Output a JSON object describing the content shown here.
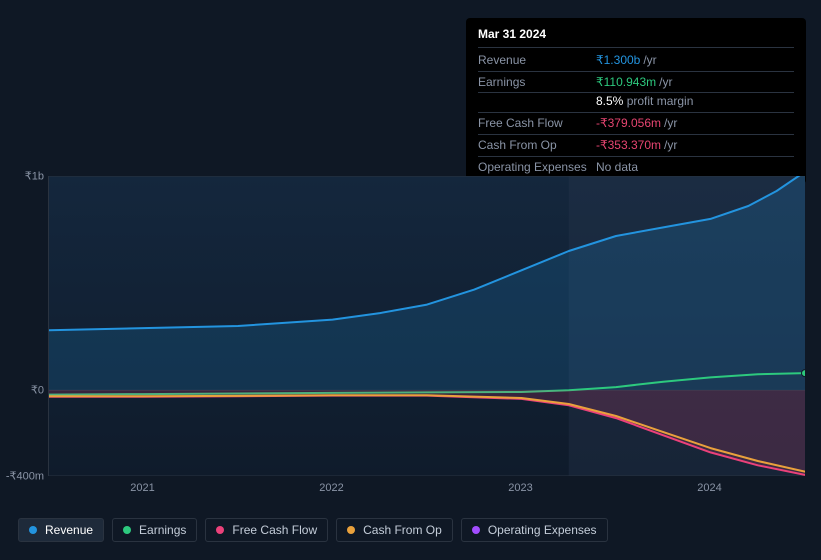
{
  "tooltip": {
    "date": "Mar 31 2024",
    "rows": [
      {
        "label": "Revenue",
        "amount": "₹1.300b",
        "unit": "/yr",
        "color": "#2394df"
      },
      {
        "label": "Earnings",
        "amount": "₹110.943m",
        "unit": "/yr",
        "color": "#2dc97e",
        "sub_pct": "8.5%",
        "sub_text": "profit margin"
      },
      {
        "label": "Free Cash Flow",
        "amount": "-₹379.056m",
        "unit": "/yr",
        "color": "#e64571"
      },
      {
        "label": "Cash From Op",
        "amount": "-₹353.370m",
        "unit": "/yr",
        "color": "#e64571"
      },
      {
        "label": "Operating Expenses",
        "amount": "No data",
        "unit": "",
        "color": "#8a94a6"
      }
    ]
  },
  "chart": {
    "type": "line",
    "background_color": "#0f1825",
    "grid_color": "#2a3340",
    "axis_font_size": 11,
    "axis_color": "#8a94a6",
    "x_domain": [
      2020.5,
      2024.5
    ],
    "y_domain": [
      -400,
      1000
    ],
    "y_ticks": [
      {
        "v": 1000,
        "label": "₹1b"
      },
      {
        "v": 0,
        "label": "₹0"
      },
      {
        "v": -400,
        "label": "-₹400m"
      }
    ],
    "x_ticks": [
      {
        "v": 2021,
        "label": "2021"
      },
      {
        "v": 2022,
        "label": "2022"
      },
      {
        "v": 2023,
        "label": "2023"
      },
      {
        "v": 2024,
        "label": "2024"
      }
    ],
    "future_shade_from_x": 2023.25,
    "future_shade_color": "rgba(40,55,78,0.35)",
    "series": [
      {
        "name": "Revenue",
        "color": "#2394df",
        "width": 2,
        "fill_opacity": 0.18,
        "fill_to": 0,
        "end_marker": true,
        "end_marker_color": "#58c7ff",
        "points": [
          [
            2020.5,
            280
          ],
          [
            2021,
            290
          ],
          [
            2021.5,
            300
          ],
          [
            2022,
            330
          ],
          [
            2022.25,
            360
          ],
          [
            2022.5,
            400
          ],
          [
            2022.75,
            470
          ],
          [
            2023,
            560
          ],
          [
            2023.25,
            650
          ],
          [
            2023.5,
            720
          ],
          [
            2023.75,
            760
          ],
          [
            2024,
            800
          ],
          [
            2024.2,
            860
          ],
          [
            2024.35,
            930
          ],
          [
            2024.5,
            1020
          ]
        ]
      },
      {
        "name": "Earnings",
        "color": "#2dc97e",
        "width": 2,
        "fill_opacity": 0,
        "end_marker": true,
        "end_marker_color": "#2dc97e",
        "points": [
          [
            2020.5,
            -20
          ],
          [
            2021,
            -18
          ],
          [
            2021.5,
            -15
          ],
          [
            2022,
            -12
          ],
          [
            2022.5,
            -10
          ],
          [
            2023,
            -8
          ],
          [
            2023.25,
            0
          ],
          [
            2023.5,
            15
          ],
          [
            2023.75,
            40
          ],
          [
            2024,
            60
          ],
          [
            2024.25,
            75
          ],
          [
            2024.5,
            80
          ]
        ]
      },
      {
        "name": "Free Cash Flow",
        "color": "#eb417a",
        "width": 2,
        "fill_opacity": 0.18,
        "fill_to": 0,
        "points": [
          [
            2020.5,
            -30
          ],
          [
            2021,
            -30
          ],
          [
            2021.5,
            -28
          ],
          [
            2022,
            -25
          ],
          [
            2022.5,
            -25
          ],
          [
            2023,
            -40
          ],
          [
            2023.25,
            -70
          ],
          [
            2023.5,
            -130
          ],
          [
            2023.75,
            -210
          ],
          [
            2024,
            -290
          ],
          [
            2024.25,
            -350
          ],
          [
            2024.5,
            -395
          ]
        ]
      },
      {
        "name": "Cash From Op",
        "color": "#e9a13c",
        "width": 2,
        "fill_opacity": 0,
        "points": [
          [
            2020.5,
            -28
          ],
          [
            2021,
            -28
          ],
          [
            2021.5,
            -26
          ],
          [
            2022,
            -23
          ],
          [
            2022.5,
            -23
          ],
          [
            2023,
            -36
          ],
          [
            2023.25,
            -64
          ],
          [
            2023.5,
            -120
          ],
          [
            2023.75,
            -195
          ],
          [
            2024,
            -270
          ],
          [
            2024.25,
            -330
          ],
          [
            2024.5,
            -380
          ]
        ]
      }
    ]
  },
  "legend": {
    "items": [
      {
        "label": "Revenue",
        "color": "#2394df",
        "active": true
      },
      {
        "label": "Earnings",
        "color": "#2dc97e",
        "active": false
      },
      {
        "label": "Free Cash Flow",
        "color": "#eb417a",
        "active": false
      },
      {
        "label": "Cash From Op",
        "color": "#e9a13c",
        "active": false
      },
      {
        "label": "Operating Expenses",
        "color": "#a24dff",
        "active": false
      }
    ]
  }
}
